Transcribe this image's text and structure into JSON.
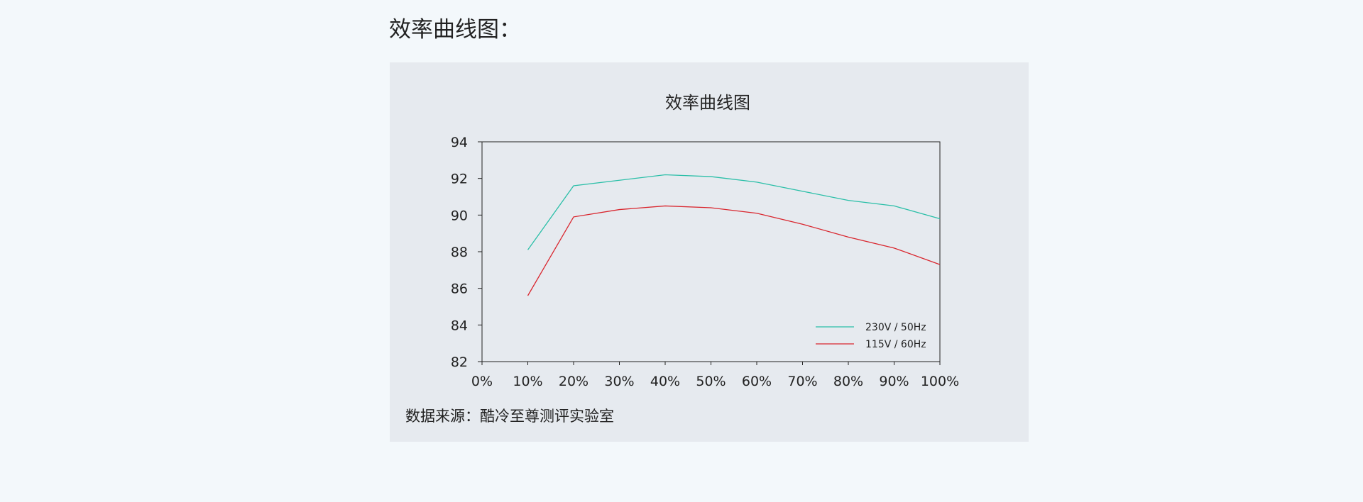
{
  "page": {
    "heading": "效率曲线图："
  },
  "chart_card": {
    "source_note": "数据来源：酷冷至尊测评实验室"
  },
  "chart_data": {
    "type": "line",
    "title": "效率曲线图",
    "xlabel": "",
    "ylabel": "",
    "x_tick_labels": [
      "0%",
      "10%",
      "20%",
      "30%",
      "40%",
      "50%",
      "60%",
      "70%",
      "80%",
      "90%",
      "100%"
    ],
    "x": [
      10,
      20,
      30,
      40,
      50,
      60,
      70,
      80,
      90,
      100
    ],
    "xlim": [
      0,
      100
    ],
    "ylim": [
      82,
      94
    ],
    "y_ticks": [
      82,
      84,
      86,
      88,
      90,
      92,
      94
    ],
    "grid": false,
    "legend_position": "bottom-right",
    "series": [
      {
        "name": "230V / 50Hz",
        "color": "#2bbfa8",
        "values": [
          88.1,
          91.6,
          91.9,
          92.2,
          92.1,
          91.8,
          91.3,
          90.8,
          90.5,
          89.8
        ]
      },
      {
        "name": "115V / 60Hz",
        "color": "#d9262e",
        "values": [
          85.6,
          89.9,
          90.3,
          90.5,
          90.4,
          90.1,
          89.5,
          88.8,
          88.2,
          87.3
        ]
      }
    ]
  }
}
